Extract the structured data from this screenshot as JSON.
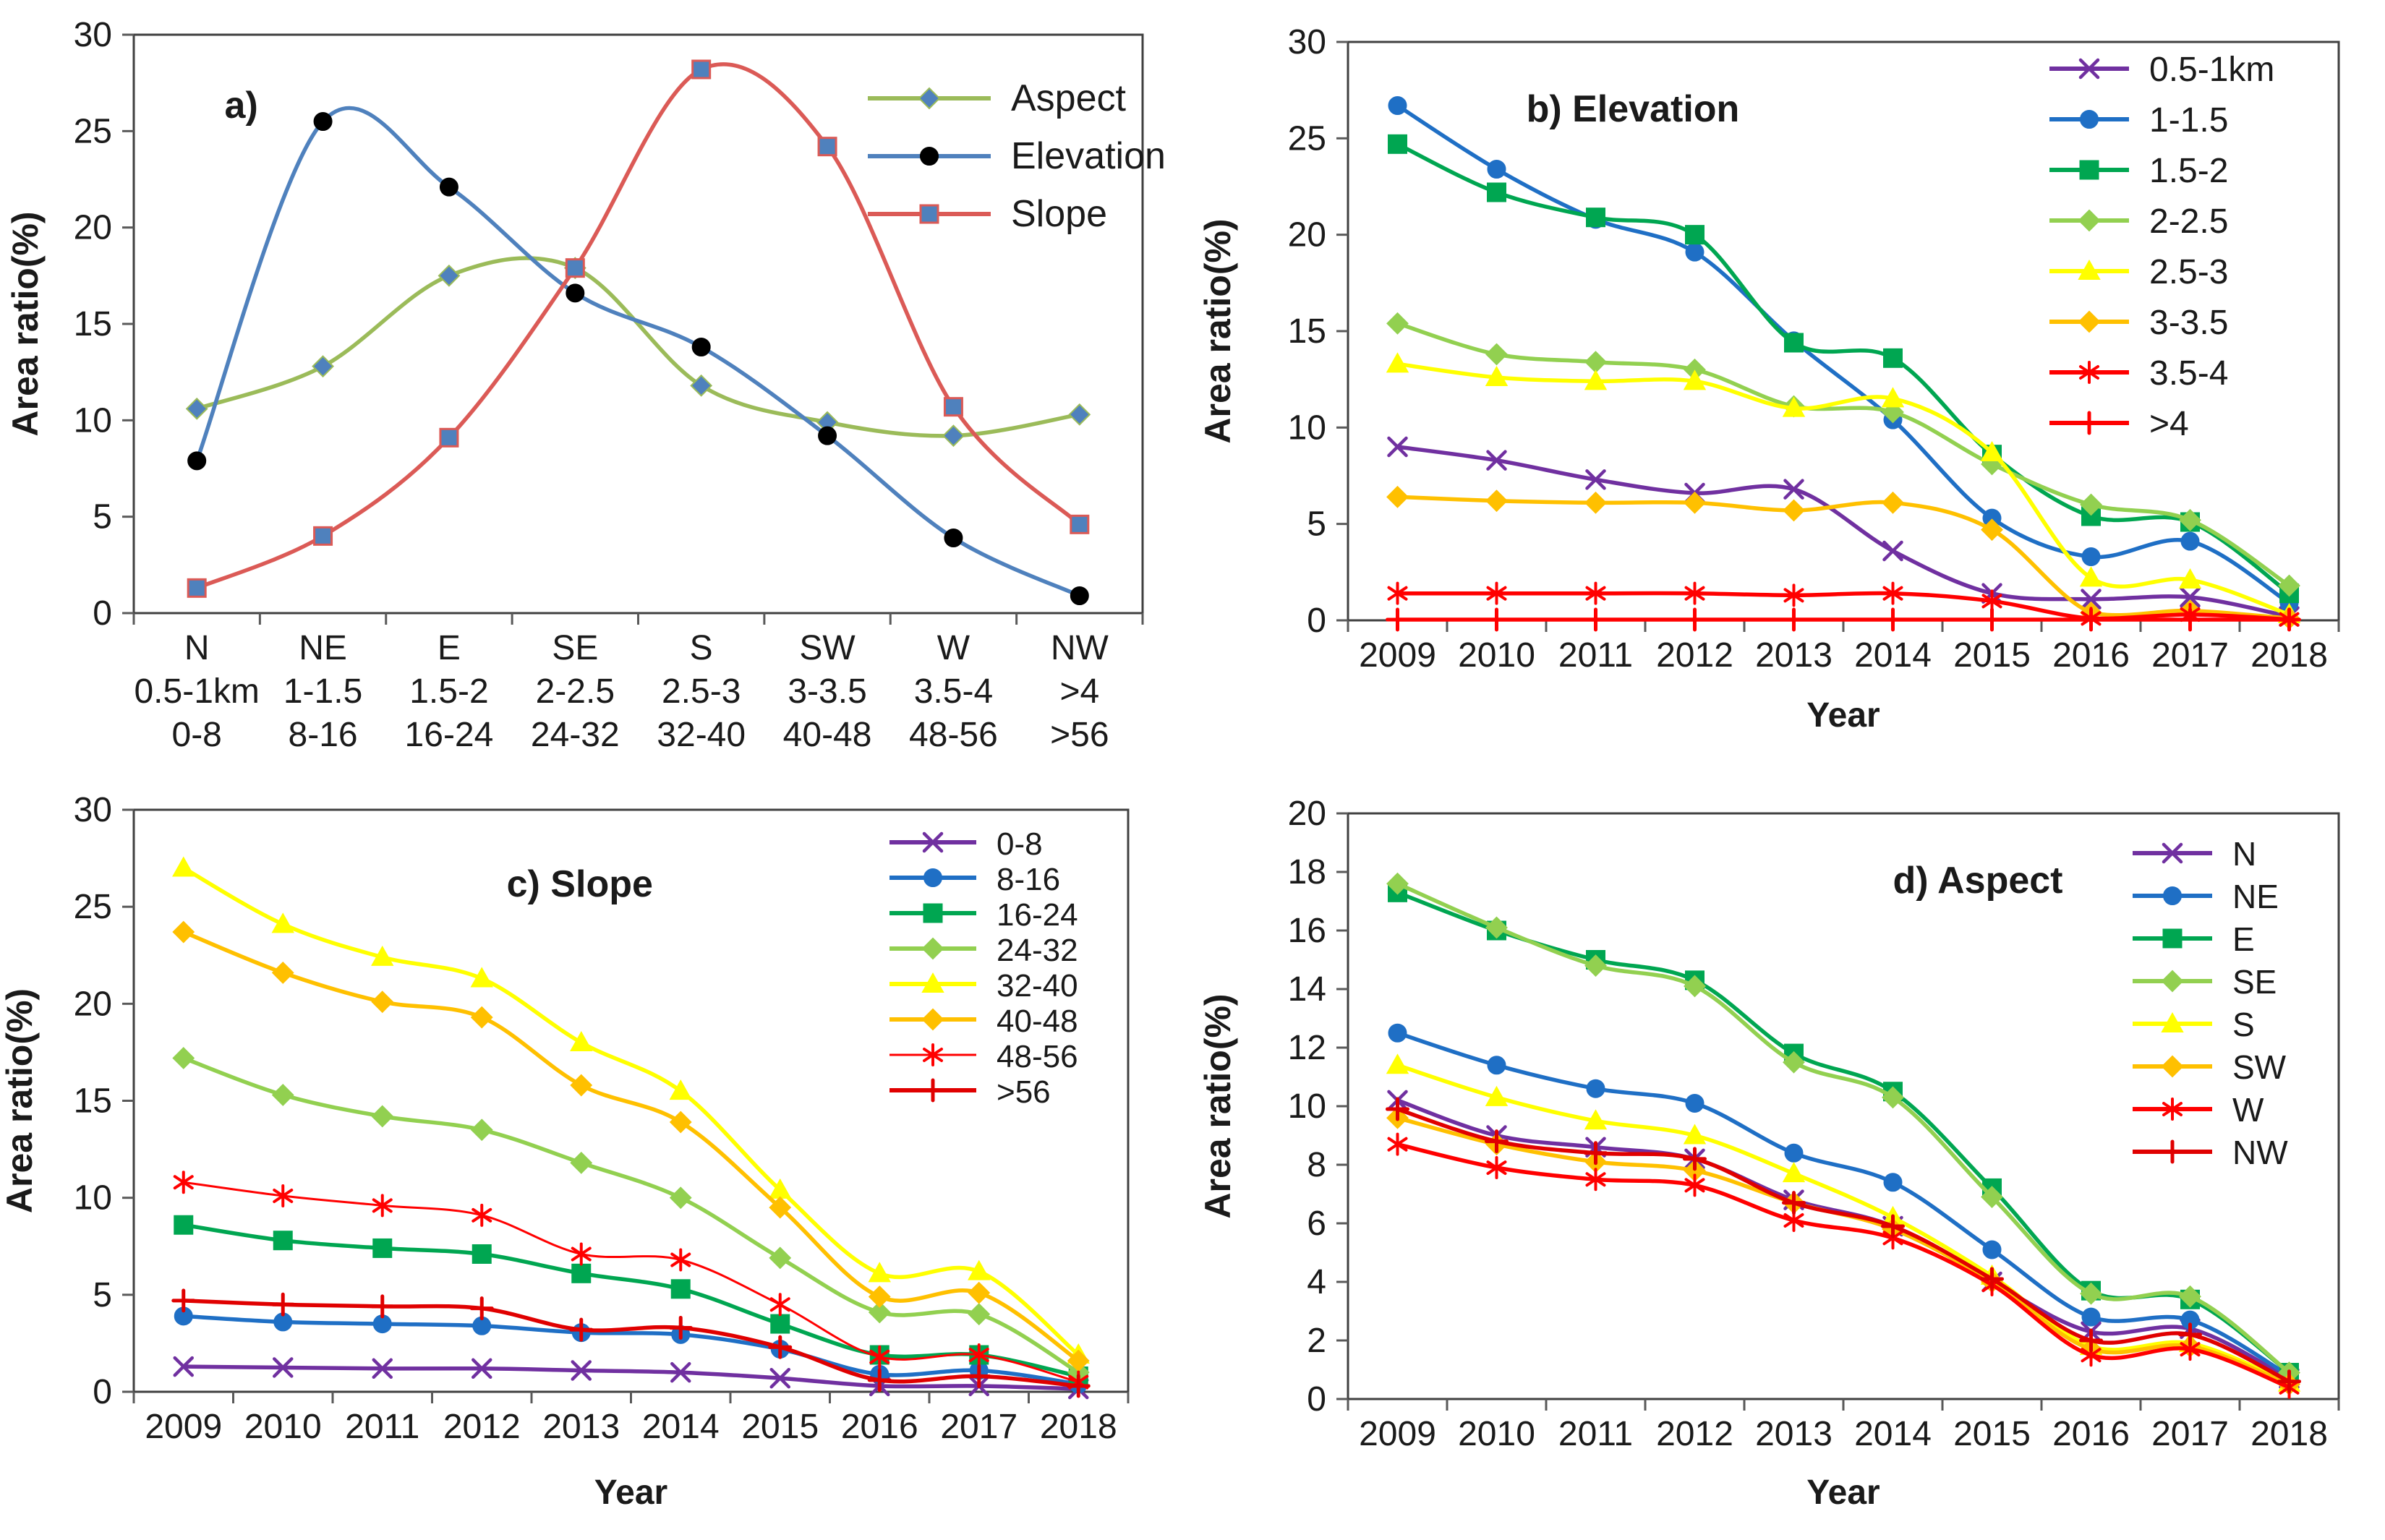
{
  "figure": {
    "y_axis_label": "Area ratio(%)",
    "x_axis_label_year": "Year",
    "axis_color": "#404040",
    "tick_color": "#595959",
    "text_color": "#1a1a1a"
  },
  "chart_data": [
    {
      "id": "a",
      "type": "line",
      "title": "a)",
      "ylabel": "Area ratio(%)",
      "xlabel": "",
      "ylim": [
        0,
        30
      ],
      "ytick_step": 5,
      "grid": false,
      "legend_position": "top-right-inside",
      "categories": [
        "N",
        "NE",
        "E",
        "SE",
        "S",
        "SW",
        "W",
        "NW"
      ],
      "category_row2": [
        "0.5-1km",
        "1-1.5",
        "1.5-2",
        "2-2.5",
        "2.5-3",
        "3-3.5",
        "3.5-4",
        ">4"
      ],
      "category_row3": [
        "0-8",
        "8-16",
        "16-24",
        "24-32",
        "32-40",
        "40-48",
        "48-56",
        ">56"
      ],
      "series": [
        {
          "name": "Aspect",
          "color": "#9BBB59",
          "marker": "diamond",
          "marker_fill": "#4F81BD",
          "marker_stroke": "#9BBB59",
          "values": [
            10.6,
            12.8,
            17.5,
            17.9,
            11.8,
            9.9,
            9.2,
            10.3
          ]
        },
        {
          "name": "Elevation",
          "color": "#4F81BD",
          "marker": "circle",
          "marker_fill": "#000000",
          "marker_stroke": "#000000",
          "values": [
            7.9,
            25.5,
            22.1,
            16.6,
            13.8,
            9.2,
            3.9,
            0.9
          ]
        },
        {
          "name": "Slope",
          "color": "#DB5A56",
          "marker": "square",
          "marker_fill": "#4F81BD",
          "marker_stroke": "#DB5A56",
          "values": [
            1.3,
            4.0,
            9.1,
            17.9,
            28.2,
            24.2,
            10.7,
            4.6
          ]
        }
      ]
    },
    {
      "id": "b",
      "type": "line",
      "title": "b)  Elevation",
      "ylabel": "Area ratio(%)",
      "xlabel": "Year",
      "ylim": [
        0,
        30
      ],
      "ytick_step": 5,
      "grid": false,
      "legend_position": "right-inside",
      "categories": [
        "2009",
        "2010",
        "2011",
        "2012",
        "2013",
        "2014",
        "2015",
        "2016",
        "2017",
        "2018"
      ],
      "series": [
        {
          "name": "0.5-1km",
          "color": "#7030A0",
          "marker": "x",
          "values": [
            9.0,
            8.3,
            7.3,
            6.6,
            6.8,
            3.6,
            1.4,
            1.1,
            1.2,
            0.2
          ]
        },
        {
          "name": "1-1.5",
          "color": "#1F6FC5",
          "marker": "circle",
          "values": [
            26.7,
            23.4,
            20.8,
            19.1,
            14.5,
            10.4,
            5.3,
            3.3,
            4.1,
            0.9
          ]
        },
        {
          "name": "1.5-2",
          "color": "#00A651",
          "marker": "square",
          "values": [
            24.7,
            22.2,
            20.9,
            20.0,
            14.4,
            13.6,
            8.6,
            5.4,
            5.1,
            1.4
          ]
        },
        {
          "name": "2-2.5",
          "color": "#92D050",
          "marker": "diamond",
          "values": [
            15.4,
            13.8,
            13.4,
            13.0,
            11.1,
            10.8,
            8.1,
            6.0,
            5.2,
            1.8
          ]
        },
        {
          "name": "2.5-3",
          "color": "#FFFF00",
          "marker": "triangle",
          "values": [
            13.3,
            12.6,
            12.4,
            12.4,
            11.0,
            11.5,
            8.7,
            2.2,
            2.1,
            0.3
          ]
        },
        {
          "name": "3-3.5",
          "color": "#FFC000",
          "marker": "diamond",
          "values": [
            6.4,
            6.2,
            6.1,
            6.1,
            5.7,
            6.1,
            4.7,
            0.4,
            0.5,
            0.1
          ]
        },
        {
          "name": "3.5-4",
          "color": "#FF0000",
          "marker": "asterisk",
          "values": [
            1.4,
            1.4,
            1.4,
            1.4,
            1.3,
            1.4,
            1.0,
            0.1,
            0.3,
            0.05
          ]
        },
        {
          "name": ">4",
          "color": "#FF0000",
          "marker": "plus",
          "values": [
            0.02,
            0.02,
            0.02,
            0.02,
            0.02,
            0.02,
            0.02,
            0.02,
            0.02,
            0.02
          ]
        }
      ]
    },
    {
      "id": "c",
      "type": "line",
      "title": "c) Slope",
      "ylabel": "Area ratio(%)",
      "xlabel": "Year",
      "ylim": [
        0,
        30
      ],
      "ytick_step": 5,
      "grid": false,
      "legend_position": "right-inside",
      "categories": [
        "2009",
        "2010",
        "2011",
        "2012",
        "2013",
        "2014",
        "2015",
        "2016",
        "2017",
        "2018"
      ],
      "series": [
        {
          "name": "0-8",
          "color": "#7030A0",
          "marker": "x",
          "values": [
            1.3,
            1.25,
            1.2,
            1.2,
            1.1,
            1.0,
            0.7,
            0.3,
            0.3,
            0.15
          ]
        },
        {
          "name": "8-16",
          "color": "#1F6FC5",
          "marker": "circle",
          "values": [
            3.9,
            3.6,
            3.5,
            3.4,
            3.05,
            2.95,
            2.2,
            0.9,
            1.1,
            0.4
          ]
        },
        {
          "name": "16-24",
          "color": "#00A651",
          "marker": "square",
          "values": [
            8.6,
            7.8,
            7.4,
            7.1,
            6.1,
            5.3,
            3.5,
            1.9,
            1.9,
            0.8
          ]
        },
        {
          "name": "24-32",
          "color": "#92D050",
          "marker": "diamond",
          "values": [
            17.2,
            15.3,
            14.2,
            13.5,
            11.8,
            10.0,
            6.9,
            4.1,
            4.0,
            1.0
          ]
        },
        {
          "name": "32-40",
          "color": "#FFFF00",
          "marker": "triangle",
          "values": [
            27.0,
            24.1,
            22.4,
            21.3,
            18.0,
            15.5,
            10.4,
            6.1,
            6.2,
            1.9
          ]
        },
        {
          "name": "40-48",
          "color": "#FFC000",
          "marker": "diamond",
          "values": [
            23.7,
            21.6,
            20.1,
            19.3,
            15.8,
            13.9,
            9.5,
            4.9,
            5.1,
            1.6
          ]
        },
        {
          "name": "48-56",
          "color": "#FF0000",
          "marker": "asterisk",
          "thin": true,
          "values": [
            10.8,
            10.1,
            9.6,
            9.1,
            7.1,
            6.8,
            4.5,
            1.8,
            1.9,
            0.5
          ]
        },
        {
          "name": ">56",
          "color": "#E00000",
          "marker": "plus",
          "values": [
            4.7,
            4.5,
            4.4,
            4.3,
            3.2,
            3.3,
            2.3,
            0.6,
            0.8,
            0.3
          ]
        }
      ]
    },
    {
      "id": "d",
      "type": "line",
      "title": "d) Aspect",
      "ylabel": "Area ratio(%)",
      "xlabel": "Year",
      "ylim": [
        0,
        20
      ],
      "ytick_step": 2,
      "grid": false,
      "legend_position": "right-inside",
      "categories": [
        "2009",
        "2010",
        "2011",
        "2012",
        "2013",
        "2014",
        "2015",
        "2016",
        "2017",
        "2018"
      ],
      "series": [
        {
          "name": "N",
          "color": "#7030A0",
          "marker": "x",
          "values": [
            10.2,
            9.0,
            8.6,
            8.2,
            6.8,
            5.9,
            4.0,
            2.3,
            2.4,
            0.7
          ]
        },
        {
          "name": "NE",
          "color": "#1F6FC5",
          "marker": "circle",
          "values": [
            12.5,
            11.4,
            10.6,
            10.1,
            8.4,
            7.4,
            5.1,
            2.8,
            2.7,
            0.8
          ]
        },
        {
          "name": "E",
          "color": "#00A651",
          "marker": "square",
          "values": [
            17.3,
            16.0,
            15.0,
            14.3,
            11.8,
            10.5,
            7.2,
            3.7,
            3.4,
            0.9
          ]
        },
        {
          "name": "SE",
          "color": "#92D050",
          "marker": "diamond",
          "values": [
            17.6,
            16.1,
            14.8,
            14.1,
            11.5,
            10.3,
            6.9,
            3.6,
            3.5,
            0.9
          ]
        },
        {
          "name": "S",
          "color": "#FFFF00",
          "marker": "triangle",
          "values": [
            11.4,
            10.3,
            9.5,
            9.0,
            7.7,
            6.2,
            4.2,
            1.8,
            1.9,
            0.55
          ]
        },
        {
          "name": "SW",
          "color": "#FFC000",
          "marker": "diamond",
          "values": [
            9.6,
            8.7,
            8.1,
            7.8,
            6.7,
            5.8,
            4.0,
            1.7,
            1.8,
            0.5
          ]
        },
        {
          "name": "W",
          "color": "#FF0000",
          "marker": "asterisk",
          "values": [
            8.7,
            7.9,
            7.5,
            7.3,
            6.1,
            5.5,
            3.9,
            1.5,
            1.7,
            0.4
          ]
        },
        {
          "name": "NW",
          "color": "#E00000",
          "marker": "plus",
          "values": [
            9.9,
            8.8,
            8.4,
            8.2,
            6.7,
            5.9,
            4.1,
            2.0,
            2.2,
            0.6
          ]
        }
      ]
    }
  ]
}
